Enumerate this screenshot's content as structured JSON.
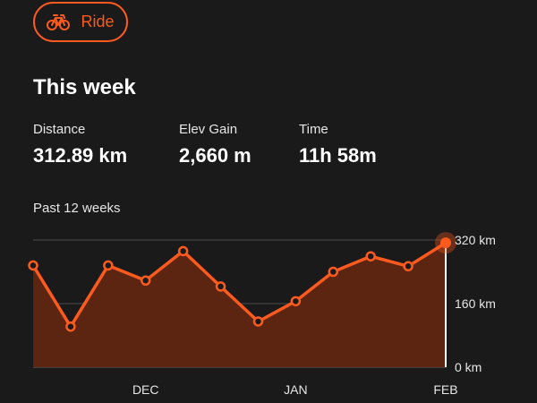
{
  "filter_chip": {
    "label": "Ride",
    "icon": "bicycle-icon"
  },
  "title": "This week",
  "stats": [
    {
      "label": "Distance",
      "value": "312.89 km"
    },
    {
      "label": "Elev Gain",
      "value": "2,660 m"
    },
    {
      "label": "Time",
      "value": "11h 58m"
    }
  ],
  "colors": {
    "accent": "#fc5a1f",
    "background": "#1a1a1a",
    "area_fill": "#5c2511"
  },
  "chart_data": {
    "type": "area",
    "title": "Past 12 weeks",
    "x_tick_labels": [
      "DEC",
      "JAN",
      "FEB"
    ],
    "x_tick_weeks": [
      3,
      7,
      11
    ],
    "y_tick_labels": [
      "320 km",
      "160 km",
      "0 km"
    ],
    "ylim": [
      0,
      320
    ],
    "series": [
      {
        "unit": "km",
        "values": [
          256,
          102,
          256,
          218,
          292,
          203,
          115,
          166,
          240,
          279,
          254,
          313
        ]
      }
    ],
    "highlighted_point": 11,
    "grid": true
  }
}
